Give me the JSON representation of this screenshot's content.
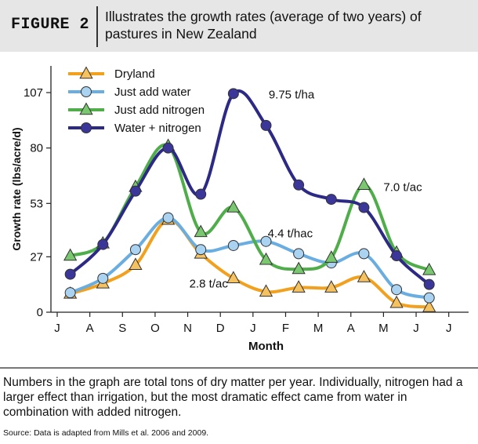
{
  "header": {
    "figure_label": "FIGURE 2",
    "title": "Illustrates the growth rates (average of two years) of pastures in New Zealand"
  },
  "chart_data": {
    "type": "line",
    "xlabel": "Month",
    "ylabel": "Growth rate (lbs/acre/d)",
    "ylim": [
      0,
      120
    ],
    "yticks": [
      0,
      27,
      53,
      80,
      107
    ],
    "categories": [
      "J",
      "A",
      "S",
      "O",
      "N",
      "D",
      "J",
      "F",
      "M",
      "A",
      "M",
      "J",
      "J"
    ],
    "grid": false,
    "legend_position": "top-left",
    "series": [
      {
        "name": "Dryland",
        "color": "#f2a11f",
        "marker": "triangle",
        "points": [
          [
            0.4,
            9
          ],
          [
            1.4,
            14
          ],
          [
            2.4,
            23
          ],
          [
            3.4,
            45
          ],
          [
            4.4,
            28.5
          ],
          [
            5.4,
            16.5
          ],
          [
            6.4,
            10
          ],
          [
            7.4,
            12
          ],
          [
            8.4,
            12
          ],
          [
            9.4,
            17
          ],
          [
            10.4,
            4.5
          ],
          [
            11.4,
            2.5
          ]
        ]
      },
      {
        "name": "Just add water",
        "color": "#6aaee1",
        "marker": "circle",
        "points": [
          [
            0.4,
            9.5
          ],
          [
            1.4,
            16.5
          ],
          [
            2.4,
            30.5
          ],
          [
            3.4,
            46
          ],
          [
            4.4,
            30.5
          ],
          [
            5.4,
            32.5
          ],
          [
            6.4,
            34.5
          ],
          [
            7.4,
            28.5
          ],
          [
            8.4,
            24
          ],
          [
            9.4,
            28.5
          ],
          [
            10.4,
            11
          ],
          [
            11.4,
            7
          ]
        ]
      },
      {
        "name": "Just add nitrogen",
        "color": "#4fad4a",
        "marker": "triangle",
        "points": [
          [
            0.4,
            27.5
          ],
          [
            1.4,
            33.5
          ],
          [
            2.4,
            61
          ],
          [
            3.4,
            81
          ],
          [
            4.4,
            39
          ],
          [
            5.4,
            51
          ],
          [
            6.4,
            25.5
          ],
          [
            7.4,
            21
          ],
          [
            8.4,
            26.5
          ],
          [
            9.4,
            62
          ],
          [
            10.4,
            29
          ],
          [
            11.4,
            20.5
          ]
        ]
      },
      {
        "name": "Water + nitrogen",
        "color": "#2d2a86",
        "marker": "circle",
        "points": [
          [
            0.4,
            18.5
          ],
          [
            1.4,
            33
          ],
          [
            2.4,
            59
          ],
          [
            3.4,
            80
          ],
          [
            4.4,
            57.5
          ],
          [
            5.4,
            106.5
          ],
          [
            6.4,
            91
          ],
          [
            7.4,
            62
          ],
          [
            8.4,
            55
          ],
          [
            9.4,
            51
          ],
          [
            10.4,
            27.5
          ],
          [
            11.4,
            13.5
          ]
        ]
      }
    ],
    "annotations": [
      {
        "text": "9.75 t/ha",
        "x": 6.48,
        "y": 106
      },
      {
        "text": "7.0 t/ac",
        "x": 10.0,
        "y": 61
      },
      {
        "text": "4.4 t/hac",
        "x": 6.45,
        "y": 38.5
      },
      {
        "text": "2.8 t/ac",
        "x": 4.05,
        "y": 14
      }
    ]
  },
  "caption": "Numbers in the graph are total tons of dry matter per year. Individually, nitrogen had a larger effect than irrigation, but the most dramatic effect came from water in combination with added nitrogen.",
  "source": "Source: Data is adapted from Mills et al. 2006 and 2009."
}
